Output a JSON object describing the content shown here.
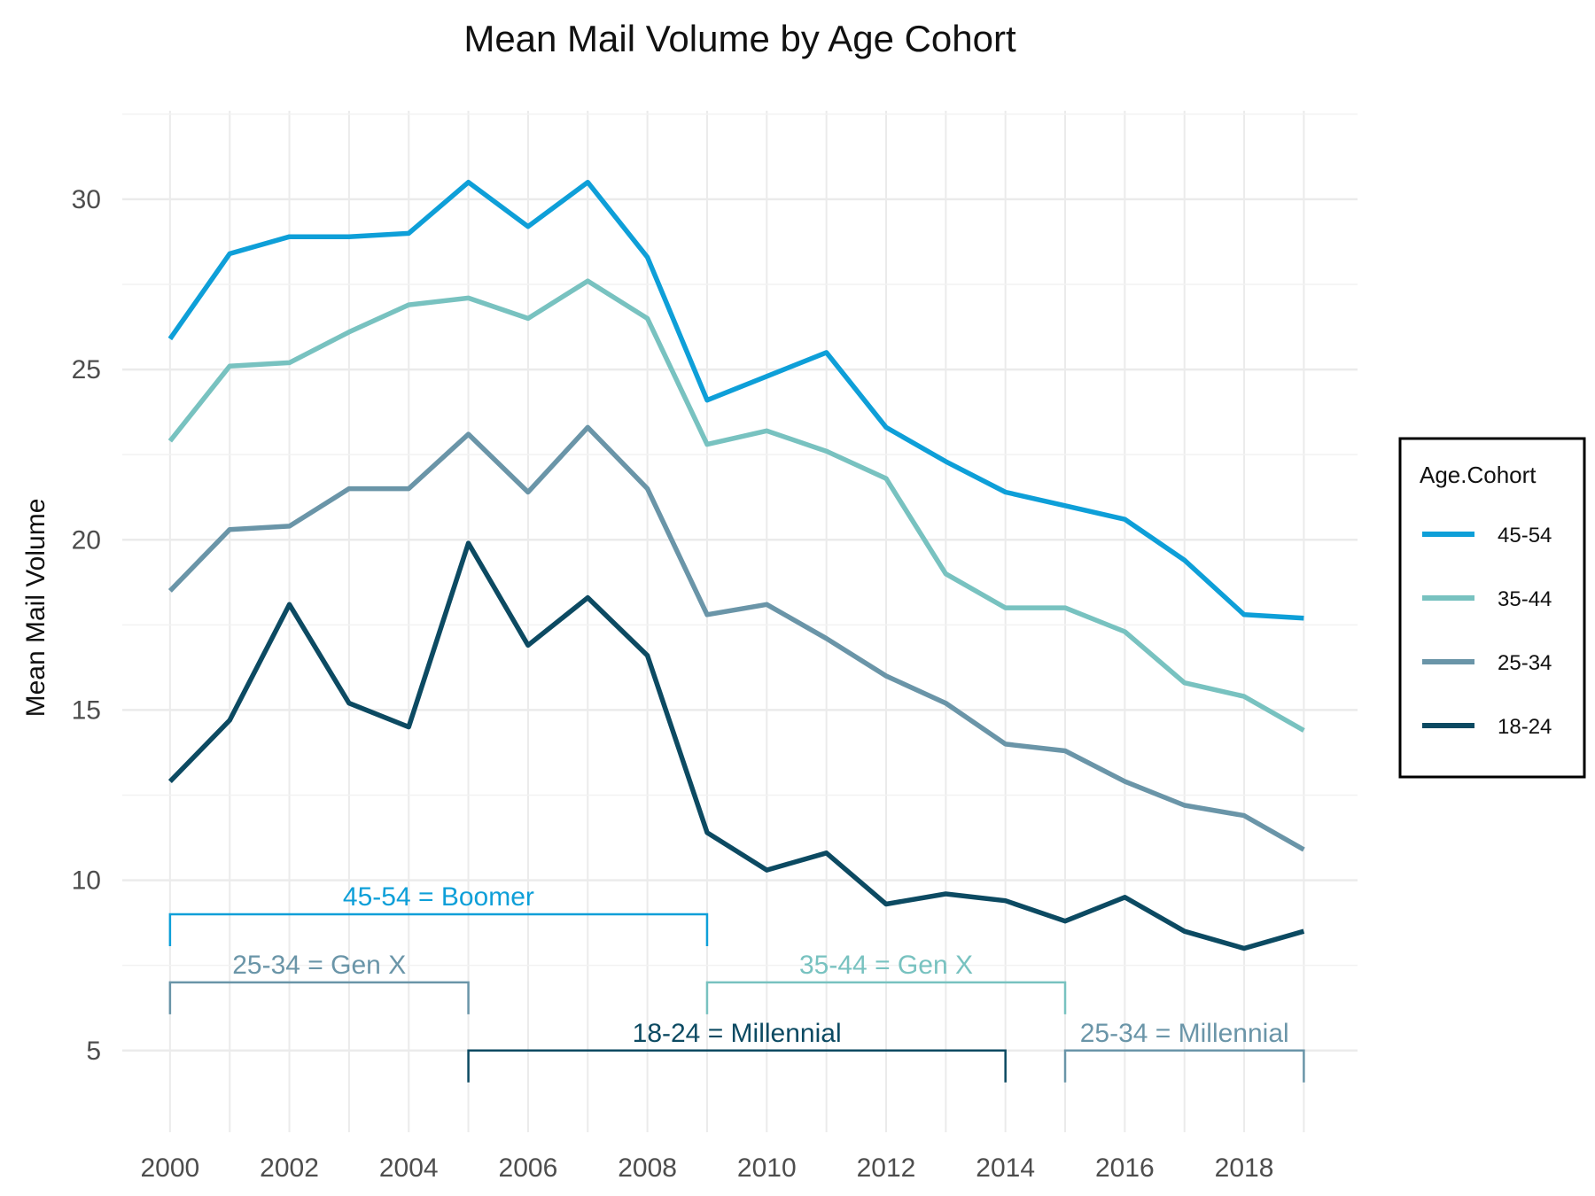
{
  "chart_data": {
    "type": "line",
    "title": "Mean Mail Volume by Age Cohort",
    "xlabel": "",
    "ylabel": "Mean Mail Volume",
    "x": [
      2000,
      2001,
      2002,
      2003,
      2004,
      2005,
      2006,
      2007,
      2008,
      2009,
      2010,
      2011,
      2012,
      2013,
      2014,
      2015,
      2016,
      2017,
      2018,
      2019
    ],
    "x_ticks": [
      2000,
      2002,
      2004,
      2006,
      2008,
      2010,
      2012,
      2014,
      2016,
      2018
    ],
    "y_ticks": [
      5,
      10,
      15,
      20,
      25,
      30
    ],
    "xlim": [
      1999.2,
      2019.9
    ],
    "ylim": [
      2.6,
      32.6
    ],
    "grid": true,
    "legend": {
      "title": "Age.Cohort",
      "position": "right"
    },
    "series": [
      {
        "name": "45-54",
        "color": "#0e9fd8",
        "values": [
          25.9,
          28.4,
          28.9,
          28.9,
          29.0,
          30.5,
          29.2,
          30.5,
          28.3,
          24.1,
          24.8,
          25.5,
          23.3,
          22.3,
          21.4,
          21.0,
          20.6,
          19.4,
          17.8,
          17.7
        ]
      },
      {
        "name": "35-44",
        "color": "#78c2c0",
        "values": [
          22.9,
          25.1,
          25.2,
          26.1,
          26.9,
          27.1,
          26.5,
          27.6,
          26.5,
          22.8,
          23.2,
          22.6,
          21.8,
          19.0,
          18.0,
          18.0,
          17.3,
          15.8,
          15.4,
          14.4
        ]
      },
      {
        "name": "25-34",
        "color": "#6a95a8",
        "values": [
          18.5,
          20.3,
          20.4,
          21.5,
          21.5,
          23.1,
          21.4,
          23.3,
          21.5,
          17.8,
          18.1,
          17.1,
          16.0,
          15.2,
          14.0,
          13.8,
          12.9,
          12.2,
          11.9,
          10.9
        ]
      },
      {
        "name": "18-24",
        "color": "#0c4a62",
        "values": [
          12.9,
          14.7,
          18.1,
          15.2,
          14.5,
          19.9,
          16.9,
          18.3,
          16.6,
          11.4,
          10.3,
          10.8,
          9.3,
          9.6,
          9.4,
          8.8,
          9.5,
          8.5,
          8.0,
          8.5
        ]
      }
    ],
    "annotations": [
      {
        "label": "45-54 = Boomer",
        "x_start": 2000,
        "x_end": 2009,
        "y": 9.0,
        "color": "#0e9fd8"
      },
      {
        "label": "25-34 = Gen X",
        "x_start": 2000,
        "x_end": 2005,
        "y": 7.0,
        "color": "#6a95a8"
      },
      {
        "label": "35-44 = Gen X",
        "x_start": 2009,
        "x_end": 2015,
        "y": 7.0,
        "color": "#78c2c0"
      },
      {
        "label": "18-24 = Millennial",
        "x_start": 2005,
        "x_end": 2014,
        "y": 5.0,
        "color": "#0c4a62"
      },
      {
        "label": "25-34 = Millennial",
        "x_start": 2015,
        "x_end": 2019,
        "y": 5.0,
        "color": "#6a95a8"
      }
    ]
  }
}
